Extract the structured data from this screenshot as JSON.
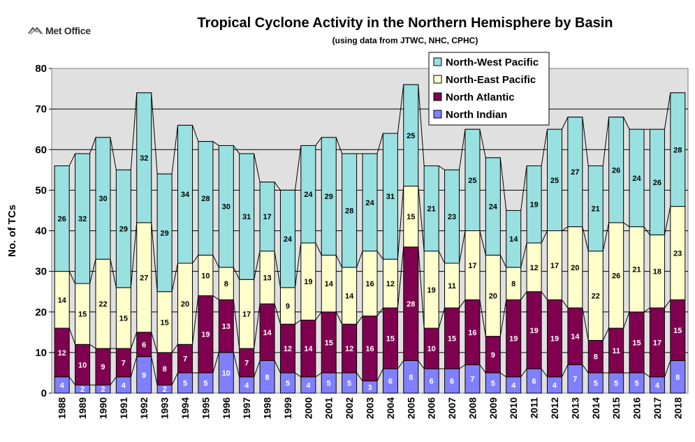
{
  "logo": {
    "text": "Met Office",
    "icon": "met-office-logo-icon"
  },
  "chart_data": {
    "type": "bar",
    "stacked": true,
    "title": "Tropical Cyclone Activity in the Northern Hemisphere by Basin",
    "subtitle": "(using data from JTWC, NHC, CPHC)",
    "xlabel": "",
    "ylabel": "No. of TCs",
    "ylim": [
      0,
      80
    ],
    "yticks": [
      0,
      10,
      20,
      30,
      40,
      50,
      60,
      70,
      80
    ],
    "grid": true,
    "legend_position": "top-right",
    "categories": [
      "1988",
      "1989",
      "1990",
      "1991",
      "1992",
      "1993",
      "1994",
      "1995",
      "1996",
      "1997",
      "1998",
      "1999",
      "2000",
      "2001",
      "2002",
      "2003",
      "2004",
      "2005",
      "2006",
      "2007",
      "2008",
      "2009",
      "2010",
      "2011",
      "2012",
      "2013",
      "2014",
      "2015",
      "2016",
      "2017",
      "2018"
    ],
    "series": [
      {
        "name": "North Indian",
        "color": "#8080ff",
        "values": [
          4,
          2,
          2,
          4,
          9,
          2,
          5,
          5,
          10,
          4,
          8,
          5,
          4,
          5,
          5,
          3,
          6,
          8,
          6,
          6,
          7,
          5,
          4,
          6,
          4,
          7,
          5,
          5,
          5,
          4,
          8
        ]
      },
      {
        "name": "North Atlantic",
        "color": "#800050",
        "values": [
          12,
          10,
          9,
          7,
          6,
          8,
          7,
          19,
          13,
          7,
          14,
          12,
          14,
          15,
          12,
          16,
          15,
          28,
          10,
          15,
          16,
          9,
          19,
          19,
          19,
          14,
          8,
          11,
          15,
          17,
          15
        ]
      },
      {
        "name": "North-East Pacific",
        "color": "#ffffcc",
        "values": [
          14,
          15,
          22,
          15,
          27,
          15,
          20,
          10,
          8,
          17,
          13,
          9,
          19,
          14,
          14,
          16,
          12,
          15,
          19,
          11,
          17,
          20,
          8,
          12,
          17,
          20,
          22,
          26,
          21,
          18,
          23
        ]
      },
      {
        "name": "North-West Pacific",
        "color": "#99e0e0",
        "values": [
          26,
          32,
          30,
          29,
          32,
          29,
          34,
          28,
          30,
          31,
          17,
          24,
          24,
          29,
          28,
          24,
          31,
          25,
          21,
          23,
          25,
          24,
          14,
          19,
          25,
          27,
          21,
          26,
          24,
          26,
          28
        ]
      }
    ],
    "legend_order": [
      "North-West Pacific",
      "North-East Pacific",
      "North Atlantic",
      "North Indian"
    ]
  }
}
